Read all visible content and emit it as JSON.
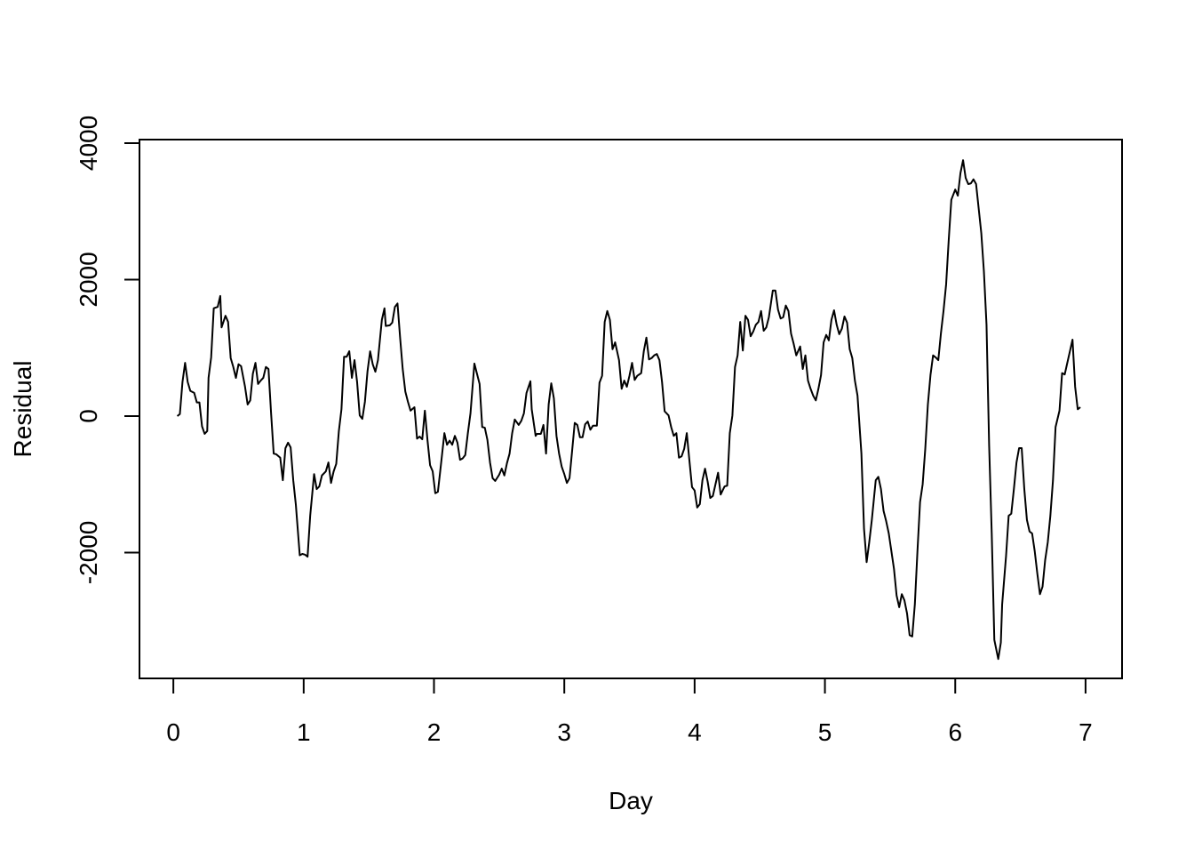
{
  "chart_data": {
    "type": "line",
    "x_label": "Day",
    "y_label": "Residual",
    "xlim": [
      -0.26,
      7.28
    ],
    "ylim": [
      -3844,
      4052
    ],
    "xticks": [
      0,
      1,
      2,
      3,
      4,
      5,
      6,
      7
    ],
    "yticks": [
      -2000,
      0,
      2000,
      4000
    ],
    "color": "#000000",
    "x": [
      0.03,
      0.05,
      0.07,
      0.09,
      0.11,
      0.13,
      0.16,
      0.18,
      0.2,
      0.22,
      0.24,
      0.26,
      0.27,
      0.29,
      0.31,
      0.34,
      0.36,
      0.37,
      0.4,
      0.42,
      0.44,
      0.46,
      0.48,
      0.5,
      0.52,
      0.55,
      0.57,
      0.59,
      0.61,
      0.63,
      0.65,
      0.67,
      0.69,
      0.71,
      0.73,
      0.75,
      0.77,
      0.79,
      0.82,
      0.84,
      0.86,
      0.88,
      0.9,
      0.92,
      0.94,
      0.97,
      0.99,
      1.01,
      1.03,
      1.05,
      1.08,
      1.1,
      1.12,
      1.14,
      1.17,
      1.19,
      1.21,
      1.23,
      1.25,
      1.27,
      1.29,
      1.31,
      1.33,
      1.35,
      1.37,
      1.39,
      1.41,
      1.43,
      1.45,
      1.47,
      1.49,
      1.51,
      1.53,
      1.55,
      1.57,
      1.6,
      1.62,
      1.63,
      1.66,
      1.68,
      1.7,
      1.72,
      1.74,
      1.76,
      1.78,
      1.8,
      1.82,
      1.85,
      1.87,
      1.89,
      1.91,
      1.93,
      1.95,
      1.97,
      1.99,
      2.01,
      2.03,
      2.05,
      2.08,
      2.1,
      2.12,
      2.14,
      2.16,
      2.18,
      2.2,
      2.22,
      2.24,
      2.26,
      2.28,
      2.31,
      2.33,
      2.35,
      2.37,
      2.39,
      2.41,
      2.43,
      2.45,
      2.47,
      2.5,
      2.52,
      2.54,
      2.56,
      2.58,
      2.6,
      2.62,
      2.65,
      2.67,
      2.69,
      2.71,
      2.74,
      2.75,
      2.78,
      2.79,
      2.82,
      2.84,
      2.86,
      2.88,
      2.9,
      2.92,
      2.94,
      2.96,
      2.98,
      3.0,
      3.02,
      3.04,
      3.06,
      3.08,
      3.1,
      3.12,
      3.14,
      3.16,
      3.18,
      3.2,
      3.22,
      3.25,
      3.27,
      3.29,
      3.31,
      3.33,
      3.35,
      3.37,
      3.39,
      3.42,
      3.44,
      3.46,
      3.48,
      3.5,
      3.52,
      3.54,
      3.56,
      3.59,
      3.61,
      3.63,
      3.65,
      3.67,
      3.69,
      3.71,
      3.73,
      3.75,
      3.77,
      3.8,
      3.82,
      3.84,
      3.86,
      3.88,
      3.9,
      3.92,
      3.94,
      3.96,
      3.98,
      4.0,
      4.02,
      4.04,
      4.06,
      4.08,
      4.1,
      4.12,
      4.14,
      4.16,
      4.18,
      4.2,
      4.23,
      4.25,
      4.27,
      4.29,
      4.31,
      4.33,
      4.35,
      4.37,
      4.39,
      4.41,
      4.43,
      4.45,
      4.47,
      4.49,
      4.51,
      4.53,
      4.55,
      4.57,
      4.6,
      4.62,
      4.64,
      4.66,
      4.68,
      4.7,
      4.72,
      4.74,
      4.76,
      4.78,
      4.81,
      4.83,
      4.85,
      4.87,
      4.89,
      4.91,
      4.93,
      4.95,
      4.97,
      4.99,
      5.01,
      5.03,
      5.05,
      5.07,
      5.09,
      5.11,
      5.13,
      5.15,
      5.17,
      5.19,
      5.21,
      5.23,
      5.25,
      5.28,
      5.3,
      5.32,
      5.34,
      5.36,
      5.39,
      5.41,
      5.43,
      5.45,
      5.47,
      5.49,
      5.51,
      5.53,
      5.55,
      5.57,
      5.59,
      5.61,
      5.63,
      5.65,
      5.67,
      5.69,
      5.71,
      5.73,
      5.75,
      5.77,
      5.79,
      5.81,
      5.83,
      5.85,
      5.87,
      5.89,
      5.91,
      5.93,
      5.95,
      5.97,
      6.0,
      6.02,
      6.04,
      6.06,
      6.08,
      6.1,
      6.12,
      6.14,
      6.16,
      6.18,
      6.2,
      6.22,
      6.24,
      6.26,
      6.28,
      6.3,
      6.33,
      6.35,
      6.36,
      6.39,
      6.41,
      6.43,
      6.45,
      6.47,
      6.49,
      6.51,
      6.53,
      6.55,
      6.57,
      6.59,
      6.61,
      6.63,
      6.65,
      6.67,
      6.69,
      6.71,
      6.73,
      6.75,
      6.77,
      6.8,
      6.82,
      6.84,
      6.86,
      6.88,
      6.9,
      6.92,
      6.94,
      6.96
    ],
    "values": [
      0,
      30,
      500,
      780,
      500,
      370,
      340,
      200,
      200,
      -150,
      -260,
      -220,
      560,
      860,
      1580,
      1600,
      1760,
      1300,
      1470,
      1380,
      850,
      720,
      560,
      760,
      730,
      430,
      170,
      230,
      620,
      780,
      470,
      520,
      560,
      720,
      690,
      40,
      -550,
      -560,
      -610,
      -940,
      -470,
      -390,
      -460,
      -940,
      -1300,
      -2040,
      -2020,
      -2030,
      -2060,
      -1460,
      -850,
      -1070,
      -1030,
      -870,
      -810,
      -680,
      -980,
      -810,
      -700,
      -220,
      100,
      870,
      870,
      950,
      560,
      820,
      500,
      10,
      -40,
      210,
      660,
      950,
      760,
      650,
      820,
      1410,
      1580,
      1320,
      1330,
      1370,
      1600,
      1650,
      1150,
      690,
      360,
      210,
      80,
      130,
      -330,
      -300,
      -340,
      80,
      -350,
      -720,
      -810,
      -1130,
      -1110,
      -770,
      -250,
      -420,
      -360,
      -420,
      -290,
      -390,
      -640,
      -620,
      -570,
      -250,
      40,
      770,
      620,
      470,
      -160,
      -170,
      -350,
      -680,
      -910,
      -950,
      -860,
      -770,
      -870,
      -690,
      -550,
      -250,
      -50,
      -130,
      -70,
      40,
      340,
      510,
      100,
      -290,
      -260,
      -260,
      -130,
      -550,
      170,
      480,
      260,
      -290,
      -550,
      -740,
      -850,
      -980,
      -910,
      -510,
      -100,
      -130,
      -310,
      -310,
      -120,
      -80,
      -200,
      -140,
      -140,
      490,
      590,
      1380,
      1540,
      1410,
      980,
      1080,
      820,
      400,
      520,
      430,
      590,
      780,
      530,
      590,
      630,
      950,
      1150,
      830,
      850,
      890,
      910,
      820,
      500,
      70,
      10,
      -160,
      -290,
      -250,
      -610,
      -590,
      -480,
      -250,
      -650,
      -1040,
      -1090,
      -1340,
      -1290,
      -940,
      -770,
      -960,
      -1200,
      -1170,
      -1000,
      -830,
      -1150,
      -1030,
      -1020,
      -250,
      10,
      720,
      890,
      1380,
      960,
      1470,
      1410,
      1170,
      1240,
      1340,
      1380,
      1540,
      1250,
      1300,
      1450,
      1840,
      1840,
      1560,
      1430,
      1450,
      1620,
      1540,
      1210,
      1060,
      890,
      1020,
      690,
      890,
      520,
      400,
      300,
      230,
      400,
      600,
      1080,
      1190,
      1110,
      1410,
      1550,
      1340,
      1200,
      1280,
      1460,
      1370,
      980,
      850,
      520,
      300,
      -550,
      -1650,
      -2140,
      -1850,
      -1520,
      -940,
      -890,
      -1070,
      -1390,
      -1540,
      -1720,
      -1980,
      -2240,
      -2630,
      -2800,
      -2610,
      -2700,
      -2890,
      -3210,
      -3230,
      -2760,
      -1980,
      -1260,
      -1000,
      -480,
      170,
      600,
      890,
      860,
      820,
      1210,
      1540,
      1930,
      2580,
      3170,
      3320,
      3230,
      3560,
      3750,
      3490,
      3400,
      3410,
      3470,
      3400,
      3040,
      2680,
      2120,
      1340,
      -420,
      -1720,
      -3280,
      -3560,
      -3320,
      -2760,
      -2050,
      -1460,
      -1430,
      -1070,
      -680,
      -470,
      -470,
      -1070,
      -1520,
      -1690,
      -1720,
      -1980,
      -2310,
      -2610,
      -2500,
      -2110,
      -1850,
      -1460,
      -940,
      -160,
      80,
      630,
      610,
      780,
      950,
      1120,
      430,
      100,
      130
    ]
  }
}
